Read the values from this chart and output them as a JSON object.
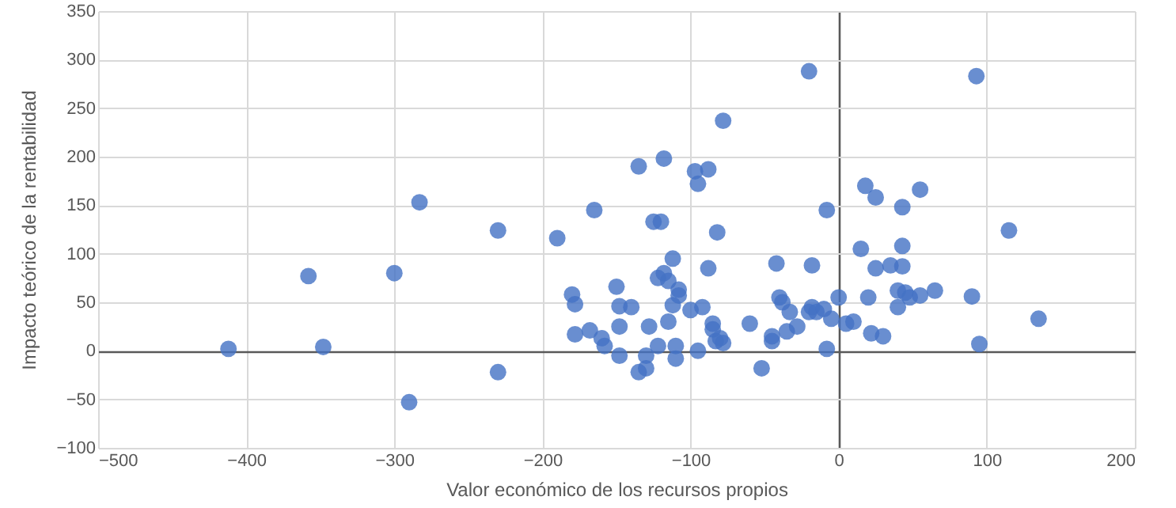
{
  "chart_data": {
    "type": "scatter",
    "xlabel": "Valor económico de los recursos propios",
    "ylabel": "Impacto teórico de la rentabilidad",
    "xlim": [
      -500,
      200
    ],
    "xticks": [
      -500,
      -400,
      -300,
      -200,
      -100,
      0,
      100,
      200
    ],
    "ylim": [
      -100,
      350
    ],
    "yticks": [
      -100,
      -50,
      0,
      50,
      100,
      150,
      200,
      250,
      300,
      350
    ],
    "grid": true,
    "marker": "circle",
    "series": [
      {
        "color": "#4472c4",
        "x": [
          -412,
          -358,
          -348,
          -300,
          -290,
          -283,
          -230,
          -230,
          -190,
          -180,
          -178,
          -178,
          -168,
          -165,
          -160,
          -158,
          -150,
          -148,
          -148,
          -148,
          -140,
          -135,
          -135,
          -130,
          -130,
          -128,
          -125,
          -122,
          -122,
          -120,
          -118,
          -118,
          -115,
          -115,
          -112,
          -112,
          -110,
          -110,
          -108,
          -108,
          -100,
          -97,
          -95,
          -95,
          -92,
          -88,
          -88,
          -85,
          -85,
          -83,
          -82,
          -80,
          -78,
          -78,
          -60,
          -52,
          -45,
          -45,
          -42,
          -40,
          -38,
          -35,
          -33,
          -28,
          -20,
          -20,
          -18,
          -18,
          -15,
          -10,
          -8,
          -8,
          -5,
          0,
          5,
          10,
          15,
          18,
          20,
          22,
          25,
          25,
          30,
          35,
          40,
          40,
          43,
          43,
          43,
          45,
          48,
          55,
          55,
          65,
          90,
          93,
          95,
          115,
          135
        ],
        "values": [
          2,
          77,
          4,
          80,
          -53,
          153,
          124,
          -22,
          116,
          58,
          48,
          17,
          21,
          145,
          13,
          5,
          66,
          46,
          -5,
          25,
          45,
          -22,
          190,
          -18,
          -5,
          25,
          133,
          75,
          5,
          133,
          198,
          80,
          72,
          30,
          95,
          47,
          5,
          -8,
          63,
          57,
          42,
          185,
          172,
          0,
          45,
          187,
          85,
          28,
          22,
          10,
          122,
          13,
          237,
          8,
          28,
          -18,
          10,
          15,
          90,
          55,
          50,
          20,
          40,
          25,
          288,
          40,
          88,
          45,
          40,
          43,
          145,
          2,
          33,
          55,
          28,
          30,
          105,
          170,
          55,
          18,
          158,
          85,
          15,
          88,
          45,
          62,
          148,
          108,
          87,
          60,
          55,
          57,
          166,
          62,
          56,
          283,
          7,
          124,
          33
        ]
      }
    ]
  }
}
